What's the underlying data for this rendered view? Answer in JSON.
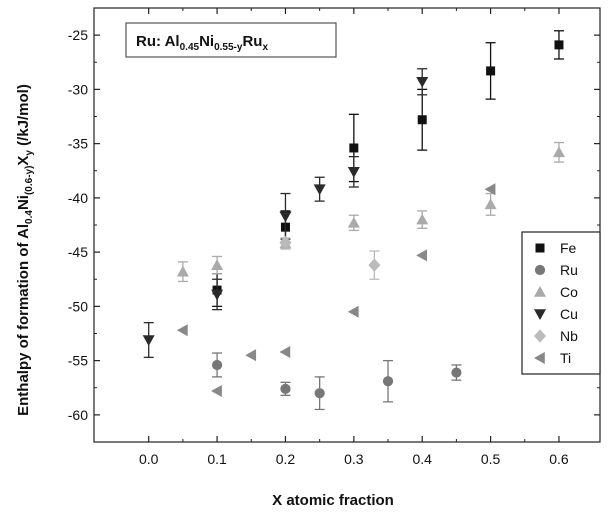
{
  "chart_data": {
    "type": "scatter",
    "title": "",
    "xlabel": "X atomic fraction",
    "ylabel": {
      "parts": [
        "Enthalpy of formation of Al",
        "0.4",
        "Ni",
        "(0.6-y)",
        "X",
        "y",
        " (/kJ/mol)"
      ]
    },
    "annotation": {
      "parts": [
        "Ru: Al",
        "0.45",
        "Ni",
        "0.55-y",
        "Ru",
        "x"
      ]
    },
    "xlim": [
      -0.08,
      0.66
    ],
    "ylim": [
      -62.5,
      -22.5
    ],
    "xticks": [
      "0.0",
      "0.1",
      "0.2",
      "0.3",
      "0.4",
      "0.5",
      "0.6"
    ],
    "xtick_values": [
      0.0,
      0.1,
      0.2,
      0.3,
      0.4,
      0.5,
      0.6
    ],
    "yticks": [
      "-25",
      "-30",
      "-35",
      "-40",
      "-45",
      "-50",
      "-55",
      "-60"
    ],
    "ytick_values": [
      -25,
      -30,
      -35,
      -40,
      -45,
      -50,
      -55,
      -60
    ],
    "legend_position": "right",
    "series": [
      {
        "name": "Fe",
        "marker": "square",
        "color": "#111111",
        "points": [
          {
            "x": 0.1,
            "y": -48.5,
            "err": 1.5
          },
          {
            "x": 0.2,
            "y": -42.7,
            "err": 1.5
          },
          {
            "x": 0.3,
            "y": -35.4,
            "err": 3.1
          },
          {
            "x": 0.4,
            "y": -32.8,
            "err": 2.8
          },
          {
            "x": 0.5,
            "y": -28.3,
            "err": 2.6
          },
          {
            "x": 0.6,
            "y": -25.9,
            "err": 1.3
          }
        ]
      },
      {
        "name": "Ru",
        "marker": "circle",
        "color": "#777777",
        "points": [
          {
            "x": 0.1,
            "y": -55.4,
            "err": 1.1
          },
          {
            "x": 0.2,
            "y": -57.6,
            "err": 0.6
          },
          {
            "x": 0.25,
            "y": -58.0,
            "err": 1.5
          },
          {
            "x": 0.35,
            "y": -56.9,
            "err": 1.9
          },
          {
            "x": 0.45,
            "y": -56.1,
            "err": 0.7
          }
        ]
      },
      {
        "name": "Co",
        "marker": "triangle-up",
        "color": "#aaaaaa",
        "points": [
          {
            "x": 0.05,
            "y": -46.8,
            "err": 0.9
          },
          {
            "x": 0.1,
            "y": -46.2,
            "err": 0.8
          },
          {
            "x": 0.2,
            "y": -44.2,
            "err": 0.5
          },
          {
            "x": 0.3,
            "y": -42.3,
            "err": 0.7
          },
          {
            "x": 0.4,
            "y": -42.0,
            "err": 0.8
          },
          {
            "x": 0.5,
            "y": -40.6,
            "err": 1.0
          },
          {
            "x": 0.6,
            "y": -35.8,
            "err": 0.9
          }
        ]
      },
      {
        "name": "Cu",
        "marker": "triangle-down",
        "color": "#2a2a2a",
        "points": [
          {
            "x": 0.0,
            "y": -53.1,
            "err": 1.6
          },
          {
            "x": 0.1,
            "y": -48.9,
            "err": 1.4
          },
          {
            "x": 0.2,
            "y": -41.7,
            "err": 2.1
          },
          {
            "x": 0.25,
            "y": -39.2,
            "err": 1.1
          },
          {
            "x": 0.3,
            "y": -37.6,
            "err": 1.4
          },
          {
            "x": 0.4,
            "y": -29.3,
            "err": 1.2
          }
        ]
      },
      {
        "name": "Nb",
        "marker": "diamond",
        "color": "#bbbbbb",
        "points": [
          {
            "x": 0.2,
            "y": -44.1,
            "err": 0.4
          },
          {
            "x": 0.33,
            "y": -46.2,
            "err": 1.3
          }
        ]
      },
      {
        "name": "Ti",
        "marker": "triangle-left",
        "color": "#888888",
        "points": [
          {
            "x": 0.05,
            "y": -52.2
          },
          {
            "x": 0.1,
            "y": -57.8
          },
          {
            "x": 0.15,
            "y": -54.5
          },
          {
            "x": 0.2,
            "y": -54.2
          },
          {
            "x": 0.3,
            "y": -50.5
          },
          {
            "x": 0.4,
            "y": -45.3
          },
          {
            "x": 0.5,
            "y": -39.2
          }
        ]
      }
    ]
  }
}
